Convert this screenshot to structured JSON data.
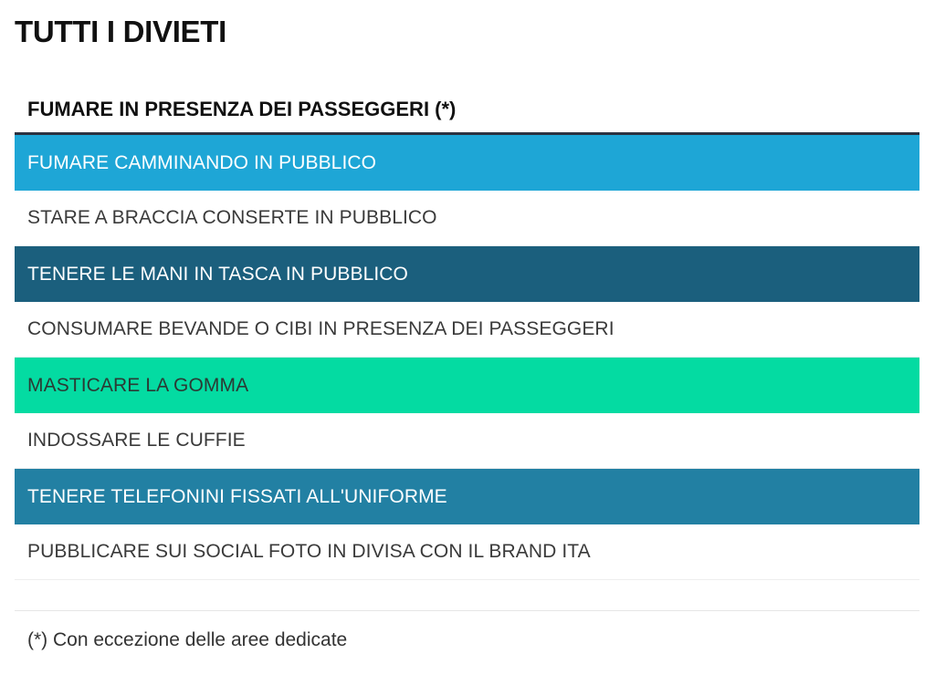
{
  "page": {
    "title": "TUTTI I DIVIETI"
  },
  "table": {
    "header": "FUMARE IN PRESENZA DEI PASSEGGERI (*)",
    "rows": [
      {
        "label": "FUMARE CAMMINANDO IN PUBBLICO",
        "bg": "#1ea6d6",
        "style": "colored"
      },
      {
        "label": "STARE A BRACCIA CONSERTE IN PUBBLICO",
        "bg": "#ffffff",
        "style": "white"
      },
      {
        "label": "TENERE LE MANI IN TASCA IN PUBBLICO",
        "bg": "#1b5f7d",
        "style": "colored"
      },
      {
        "label": "CONSUMARE BEVANDE O CIBI IN PRESENZA DEI PASSEGGERI",
        "bg": "#ffffff",
        "style": "white"
      },
      {
        "label": "MASTICARE LA GOMMA",
        "bg": "#04dba2",
        "style": "mint"
      },
      {
        "label": "INDOSSARE LE CUFFIE",
        "bg": "#ffffff",
        "style": "white"
      },
      {
        "label": "TENERE TELEFONINI FISSATI ALL'UNIFORME",
        "bg": "#2280a3",
        "style": "colored"
      },
      {
        "label": "PUBBLICARE SUI SOCIAL FOTO IN DIVISA CON IL BRAND ITA",
        "bg": "#ffffff",
        "style": "white"
      }
    ]
  },
  "footnote": "(*) Con eccezione delle aree dedicate"
}
